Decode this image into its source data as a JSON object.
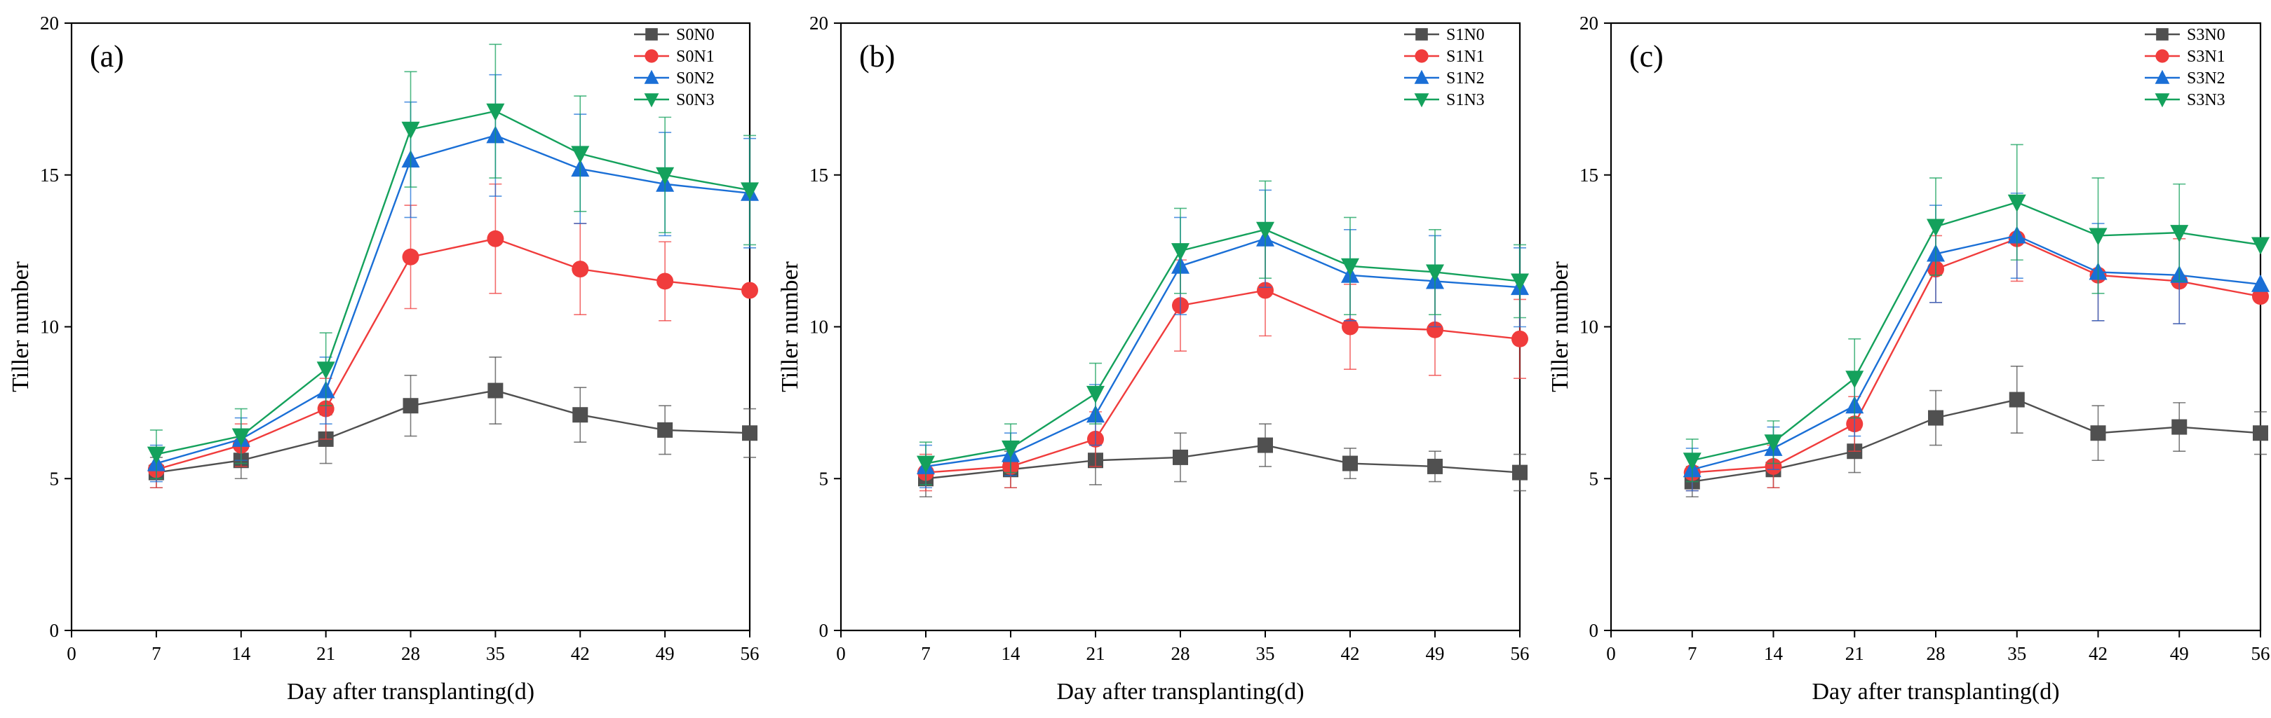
{
  "colors": {
    "N0": "#505050",
    "N1": "#f03c3c",
    "N2": "#1a6fd6",
    "N3": "#14a15c"
  },
  "chart_data": [
    {
      "type": "line",
      "panel_label": "(a)",
      "xlabel": "Day after transplanting(d)",
      "ylabel": "Tiller number",
      "xlim": [
        0,
        56
      ],
      "ylim": [
        0,
        20
      ],
      "x_ticks": [
        "0",
        "7",
        "14",
        "21",
        "28",
        "35",
        "42",
        "49",
        "56"
      ],
      "y_ticks": [
        "0",
        "5",
        "10",
        "15",
        "20"
      ],
      "x": [
        7,
        14,
        21,
        28,
        35,
        42,
        49,
        56
      ],
      "legend_position": "top-right",
      "series": [
        {
          "name": "S0N0",
          "marker": "square",
          "color_key": "N0",
          "values": [
            5.2,
            5.6,
            6.3,
            7.4,
            7.9,
            7.1,
            6.6,
            6.5
          ],
          "errors": [
            0.5,
            0.6,
            0.8,
            1.0,
            1.1,
            0.9,
            0.8,
            0.8
          ]
        },
        {
          "name": "S0N1",
          "marker": "circle",
          "color_key": "N1",
          "values": [
            5.3,
            6.1,
            7.3,
            12.3,
            12.9,
            11.9,
            11.5,
            11.2
          ],
          "errors": [
            0.6,
            0.7,
            1.0,
            1.7,
            1.8,
            1.5,
            1.3,
            0.0
          ]
        },
        {
          "name": "S0N2",
          "marker": "triangle-up",
          "color_key": "N2",
          "values": [
            5.5,
            6.3,
            7.9,
            15.5,
            16.3,
            15.2,
            14.7,
            14.4
          ],
          "errors": [
            0.6,
            0.7,
            1.1,
            1.9,
            2.0,
            1.8,
            1.7,
            1.8
          ]
        },
        {
          "name": "S0N3",
          "marker": "triangle-down",
          "color_key": "N3",
          "values": [
            5.8,
            6.4,
            8.6,
            16.5,
            17.1,
            15.7,
            15.0,
            14.5
          ],
          "errors": [
            0.8,
            0.9,
            1.2,
            1.9,
            2.2,
            1.9,
            1.9,
            1.8
          ]
        }
      ]
    },
    {
      "type": "line",
      "panel_label": "(b)",
      "xlabel": "Day after transplanting(d)",
      "ylabel": "Tiller number",
      "xlim": [
        0,
        56
      ],
      "ylim": [
        0,
        20
      ],
      "x_ticks": [
        "0",
        "7",
        "14",
        "21",
        "28",
        "35",
        "42",
        "49",
        "56"
      ],
      "y_ticks": [
        "0",
        "5",
        "10",
        "15",
        "20"
      ],
      "x": [
        7,
        14,
        21,
        28,
        35,
        42,
        49,
        56
      ],
      "legend_position": "top-right",
      "series": [
        {
          "name": "S1N0",
          "marker": "square",
          "color_key": "N0",
          "values": [
            5.0,
            5.3,
            5.6,
            5.7,
            6.1,
            5.5,
            5.4,
            5.2
          ],
          "errors": [
            0.6,
            0.6,
            0.8,
            0.8,
            0.7,
            0.5,
            0.5,
            0.6
          ]
        },
        {
          "name": "S1N1",
          "marker": "circle",
          "color_key": "N1",
          "values": [
            5.2,
            5.4,
            6.3,
            10.7,
            11.2,
            10.0,
            9.9,
            9.6
          ],
          "errors": [
            0.6,
            0.7,
            0.9,
            1.5,
            1.5,
            1.4,
            1.5,
            1.3
          ]
        },
        {
          "name": "S1N2",
          "marker": "triangle-up",
          "color_key": "N2",
          "values": [
            5.4,
            5.8,
            7.1,
            12.0,
            12.9,
            11.7,
            11.5,
            11.3
          ],
          "errors": [
            0.7,
            0.7,
            1.0,
            1.6,
            1.6,
            1.5,
            1.5,
            1.3
          ]
        },
        {
          "name": "S1N3",
          "marker": "triangle-down",
          "color_key": "N3",
          "values": [
            5.5,
            6.0,
            7.8,
            12.5,
            13.2,
            12.0,
            11.8,
            11.5
          ],
          "errors": [
            0.7,
            0.8,
            1.0,
            1.4,
            1.6,
            1.6,
            1.4,
            1.2
          ]
        }
      ]
    },
    {
      "type": "line",
      "panel_label": "(c)",
      "xlabel": "Day after transplanting(d)",
      "ylabel": "Tiller number",
      "xlim": [
        0,
        56
      ],
      "ylim": [
        0,
        20
      ],
      "x_ticks": [
        "0",
        "7",
        "14",
        "21",
        "28",
        "35",
        "42",
        "49",
        "56"
      ],
      "y_ticks": [
        "0",
        "5",
        "10",
        "15",
        "20"
      ],
      "x": [
        7,
        14,
        21,
        28,
        35,
        42,
        49,
        56
      ],
      "legend_position": "top-right",
      "series": [
        {
          "name": "S3N0",
          "marker": "square",
          "color_key": "N0",
          "values": [
            4.9,
            5.3,
            5.9,
            7.0,
            7.6,
            6.5,
            6.7,
            6.5
          ],
          "errors": [
            0.5,
            0.6,
            0.7,
            0.9,
            1.1,
            0.9,
            0.8,
            0.7
          ]
        },
        {
          "name": "S3N1",
          "marker": "circle",
          "color_key": "N1",
          "values": [
            5.2,
            5.4,
            6.8,
            11.9,
            12.9,
            11.7,
            11.5,
            11.0
          ],
          "errors": [
            0.6,
            0.7,
            0.9,
            1.1,
            1.4,
            1.5,
            1.4,
            0.0
          ]
        },
        {
          "name": "S3N2",
          "marker": "triangle-up",
          "color_key": "N2",
          "values": [
            5.3,
            6.0,
            7.4,
            12.4,
            13.0,
            11.8,
            11.7,
            11.4
          ],
          "errors": [
            0.7,
            0.7,
            1.0,
            1.6,
            1.4,
            1.6,
            1.6,
            0.0
          ]
        },
        {
          "name": "S3N3",
          "marker": "triangle-down",
          "color_key": "N3",
          "values": [
            5.6,
            6.2,
            8.3,
            13.3,
            14.1,
            13.0,
            13.1,
            12.7
          ],
          "errors": [
            0.7,
            0.7,
            1.3,
            1.6,
            1.9,
            1.9,
            1.6,
            0.0
          ]
        }
      ]
    }
  ]
}
